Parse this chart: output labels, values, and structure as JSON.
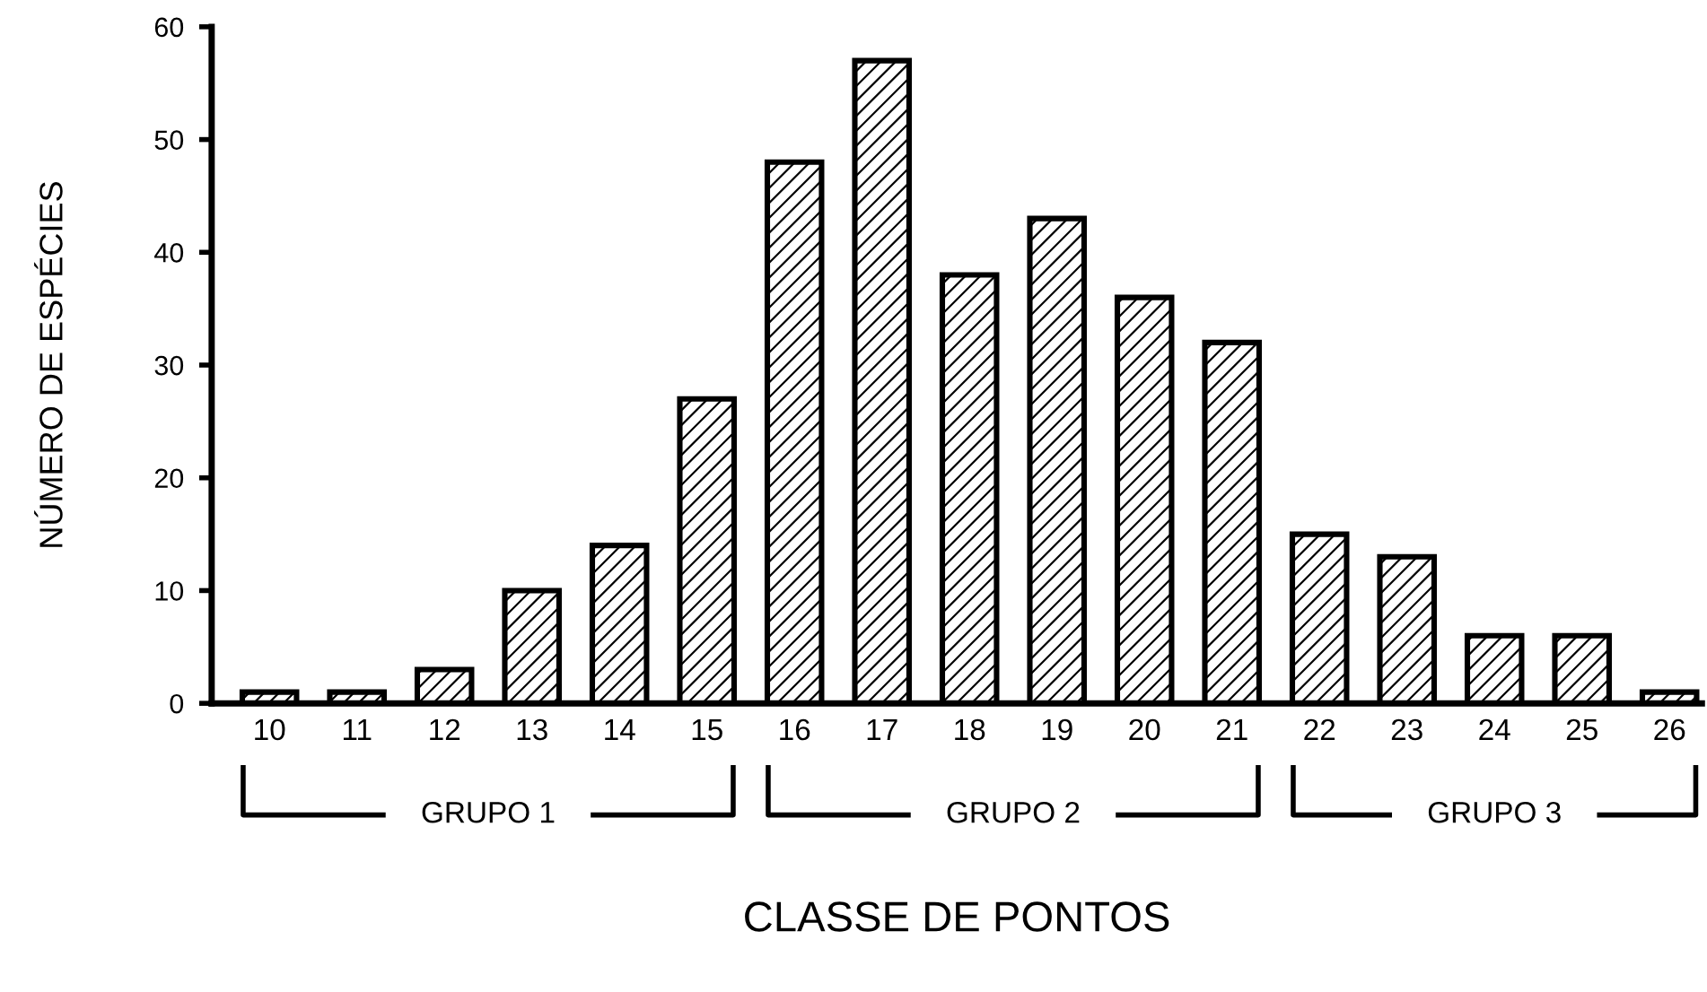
{
  "chart_data": {
    "type": "bar",
    "xlabel": "CLASSE DE PONTOS",
    "ylabel": "NÚMERO DE ESPÉCIES",
    "categories": [
      "10",
      "11",
      "12",
      "13",
      "14",
      "15",
      "16",
      "17",
      "18",
      "19",
      "20",
      "21",
      "22",
      "23",
      "24",
      "25",
      "26"
    ],
    "values": [
      1,
      1,
      3,
      10,
      14,
      27,
      48,
      57,
      38,
      43,
      36,
      32,
      15,
      13,
      6,
      6,
      1
    ],
    "color": "#000000",
    "ylim": [
      0,
      60
    ],
    "yticks": [
      0,
      10,
      20,
      30,
      40,
      50,
      60
    ],
    "grid": false,
    "annotations": [
      "GRUPO 1",
      "GRUPO 2",
      "GRUPO 3"
    ]
  }
}
